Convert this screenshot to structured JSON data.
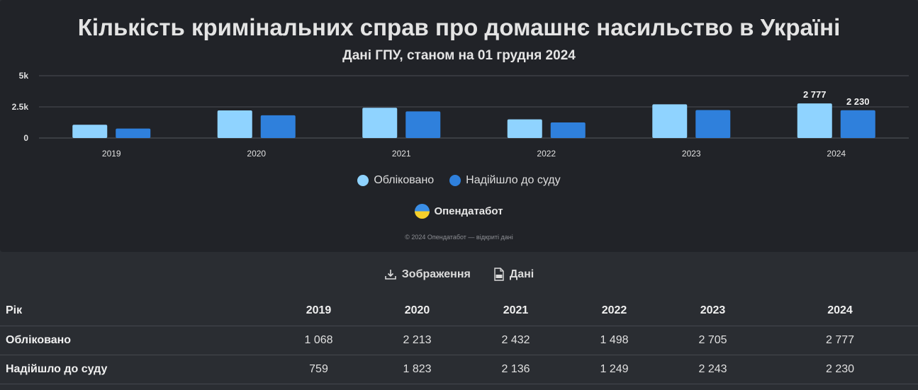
{
  "chart_data": {
    "type": "bar",
    "title": "Кількість кримінальних справ про домашнє насильство в Україні",
    "subtitle": "Дані ГПУ, станом на 01 грудня 2024",
    "categories": [
      "2019",
      "2020",
      "2021",
      "2022",
      "2023",
      "2024"
    ],
    "series": [
      {
        "name": "Обліковано",
        "color": "#8fd3ff",
        "values": [
          1068,
          2213,
          2432,
          1498,
          2705,
          2777
        ]
      },
      {
        "name": "Надійшло до суду",
        "color": "#2f80dc",
        "values": [
          759,
          1823,
          2136,
          1249,
          2243,
          2230
        ]
      }
    ],
    "data_labels": {
      "category": "2024",
      "labels": [
        "2 777",
        "2 230"
      ]
    },
    "ylim": [
      0,
      5000
    ],
    "y_ticks": [
      0,
      2500,
      5000
    ],
    "y_tick_labels": [
      "0",
      "2.5k",
      "5k"
    ],
    "grid": true,
    "legend_position": "bottom"
  },
  "brand": {
    "name": "Опендатабот",
    "copyright": "© 2024 Опендатабот — відкриті дані"
  },
  "actions": {
    "image_label": "Зображення",
    "data_label": "Дані",
    "image_icon": "download-icon",
    "data_icon": "csv-file-icon"
  },
  "table": {
    "header": [
      "Рік",
      "2019",
      "2020",
      "2021",
      "2022",
      "2023",
      "2024"
    ],
    "rows": [
      [
        "Обліковано",
        "1 068",
        "2 213",
        "2 432",
        "1 498",
        "2 705",
        "2 777"
      ],
      [
        "Надійшло до суду",
        "759",
        "1 823",
        "2 136",
        "1 249",
        "2 243",
        "2 230"
      ]
    ]
  }
}
